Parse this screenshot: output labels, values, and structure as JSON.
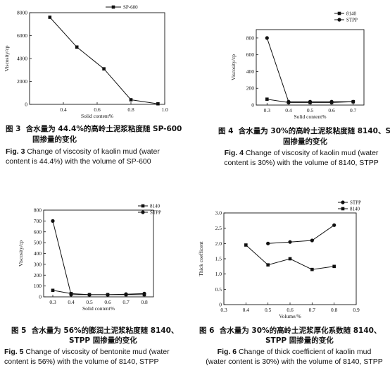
{
  "chart_data": [
    {
      "type": "line",
      "xlabel": "Solid content%",
      "ylabel": "Viscosity/cp",
      "xlim": [
        0.2,
        1.0
      ],
      "ylim": [
        0,
        8000
      ],
      "x_ticks": [
        "0.4",
        "0.6",
        "0.8",
        "1.0"
      ],
      "y_ticks": [
        "0",
        "2000",
        "4000",
        "6000",
        "8000"
      ],
      "legend_position": "top-right",
      "series": [
        {
          "name": "SP-600",
          "marker": "square",
          "x": [
            0.32,
            0.48,
            0.64,
            0.8,
            0.96
          ],
          "y": [
            7600,
            5000,
            3100,
            400,
            50
          ]
        }
      ],
      "caption_cn": [
        "图 3",
        "含水量为 44.4%的高岭土泥浆粘度随 SP-600",
        "固掺量的变化"
      ],
      "caption_en": [
        "Fig. 3",
        "Change of viscosity of kaolin mud (water",
        "content is 44.4%) with the volume of SP-600"
      ]
    },
    {
      "type": "line",
      "xlabel": "Solid content%",
      "ylabel": "Viscosity/cp",
      "xlim": [
        0.25,
        0.75
      ],
      "ylim": [
        0,
        900
      ],
      "x_ticks": [
        "0.3",
        "0.4",
        "0.5",
        "0.6",
        "0.7"
      ],
      "y_ticks": [
        "0",
        "200",
        "400",
        "600",
        "800"
      ],
      "legend_position": "top-right",
      "series": [
        {
          "name": "8140",
          "marker": "square",
          "x": [
            0.3,
            0.4,
            0.5,
            0.6,
            0.7
          ],
          "y": [
            70,
            30,
            30,
            30,
            40
          ]
        },
        {
          "name": "STPP",
          "marker": "circle",
          "x": [
            0.3,
            0.4,
            0.5,
            0.6,
            0.7
          ],
          "y": [
            800,
            40,
            40,
            40,
            40
          ]
        }
      ],
      "caption_cn": [
        "图 4",
        "含水量为 30%的高岭土泥浆粘度随 8140、STPP",
        "固掺量的变化"
      ],
      "caption_en": [
        "Fig. 4",
        "Change of viscosity of kaolin mud (water",
        "content is 30%) with the volume of 8140, STPP"
      ]
    },
    {
      "type": "line",
      "xlabel": "Solid content%",
      "ylabel": "Viscosity/cp",
      "xlim": [
        0.25,
        0.85
      ],
      "ylim": [
        0,
        800
      ],
      "x_ticks": [
        "0.3",
        "0.4",
        "0.5",
        "0.6",
        "0.7",
        "0.8"
      ],
      "y_ticks": [
        "0",
        "100",
        "200",
        "300",
        "400",
        "500",
        "600",
        "700",
        "800"
      ],
      "legend_position": "top-right",
      "series": [
        {
          "name": "8140",
          "marker": "square",
          "x": [
            0.3,
            0.4,
            0.5,
            0.6,
            0.7,
            0.8
          ],
          "y": [
            60,
            30,
            20,
            20,
            20,
            20
          ]
        },
        {
          "name": "STPP",
          "marker": "circle",
          "x": [
            0.3,
            0.4,
            0.5,
            0.6,
            0.7,
            0.8
          ],
          "y": [
            700,
            20,
            20,
            20,
            25,
            30
          ]
        }
      ],
      "caption_cn": [
        "图 5",
        "含水量为 56%的膨润土泥浆粘度随 8140、",
        "STPP 固掺量的变化"
      ],
      "caption_en": [
        "Fig. 5",
        "Change of viscosity of bentonite mud (water",
        "content is 56%) with the volume of 8140, STPP"
      ]
    },
    {
      "type": "line",
      "xlabel": "Volume/%",
      "ylabel": "Thick coefficent",
      "xlim": [
        0.3,
        0.9
      ],
      "ylim": [
        0,
        3.0
      ],
      "x_ticks": [
        "0.3",
        "0.4",
        "0.5",
        "0.6",
        "0.7",
        "0.8",
        "0.9"
      ],
      "y_ticks": [
        "0",
        "0.5",
        "1.0",
        "1.5",
        "2.0",
        "2.5",
        "3.0"
      ],
      "legend_position": "top-right",
      "series": [
        {
          "name": "STPP",
          "marker": "circle",
          "x": [
            0.5,
            0.6,
            0.7,
            0.8
          ],
          "y": [
            2.0,
            2.05,
            2.1,
            2.6
          ]
        },
        {
          "name": "8140",
          "marker": "square",
          "x": [
            0.4,
            0.5,
            0.6,
            0.7,
            0.8
          ],
          "y": [
            1.95,
            1.3,
            1.5,
            1.15,
            1.25
          ]
        }
      ],
      "caption_cn": [
        "图 6",
        "含水量为 30%的高岭土泥浆厚化系数随 8140、",
        "STPP 固掺量的变化"
      ],
      "caption_en": [
        "Fig. 6",
        "Change of thick coefficient of kaolin mud",
        "(water content is 30%) with the volume of 8140, STPP"
      ]
    }
  ]
}
